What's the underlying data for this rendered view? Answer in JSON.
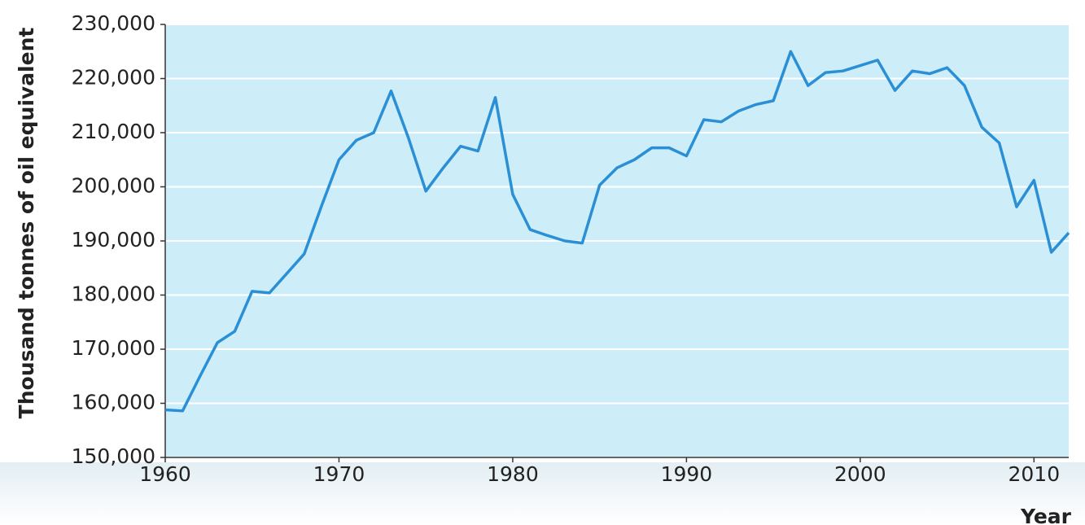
{
  "chart_data": {
    "type": "line",
    "y_label": "Thousand tonnes of oil equivalent",
    "x_label": "Year",
    "x": [
      1960,
      1961,
      1962,
      1963,
      1964,
      1965,
      1966,
      1967,
      1968,
      1969,
      1970,
      1971,
      1972,
      1973,
      1974,
      1975,
      1976,
      1977,
      1978,
      1979,
      1980,
      1981,
      1982,
      1983,
      1984,
      1985,
      1986,
      1987,
      1988,
      1989,
      1990,
      1991,
      1992,
      1993,
      1994,
      1995,
      1996,
      1997,
      1998,
      1999,
      2000,
      2001,
      2002,
      2003,
      2004,
      2005,
      2006,
      2007,
      2008,
      2009,
      2010,
      2011,
      2012
    ],
    "series": [
      {
        "color": "#2b8fd6",
        "values": [
          158800,
          158600,
          165000,
          171200,
          173300,
          180700,
          180400,
          184000,
          187600,
          196500,
          205000,
          208600,
          210000,
          217700,
          209000,
          199200,
          203500,
          207500,
          206600,
          216500,
          198600,
          192100,
          191000,
          190000,
          189600,
          200300,
          203500,
          205000,
          207200,
          207200,
          205700,
          212400,
          212000,
          214000,
          215200,
          215900,
          225000,
          218700,
          221100,
          221400,
          222400,
          223400,
          217800,
          221400,
          220900,
          222000,
          218700,
          211000,
          208100,
          196300,
          201200,
          187900,
          191500
        ]
      }
    ],
    "xlim": [
      1960,
      2012
    ],
    "xticks": [
      1960,
      1970,
      1980,
      1990,
      2000,
      2010
    ],
    "ylim": [
      150000,
      230000
    ],
    "yticks": [
      {
        "value": 150000,
        "label": "150,000"
      },
      {
        "value": 160000,
        "label": "160,000"
      },
      {
        "value": 170000,
        "label": "170,000"
      },
      {
        "value": 180000,
        "label": "180,000"
      },
      {
        "value": 190000,
        "label": "190,000"
      },
      {
        "value": 200000,
        "label": "200,000"
      },
      {
        "value": 210000,
        "label": "210,000"
      },
      {
        "value": 220000,
        "label": "220,000"
      },
      {
        "value": 230000,
        "label": "230,000"
      }
    ],
    "grid": true
  }
}
